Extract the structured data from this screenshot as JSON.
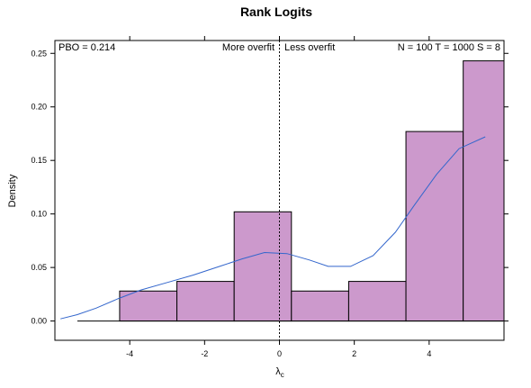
{
  "chart_data": {
    "type": "bar",
    "title": "Rank Logits",
    "xlabel": "λc",
    "ylabel": "Density",
    "xlim": [
      -6,
      6
    ],
    "ylim": [
      -0.018,
      0.262
    ],
    "x_ticks": [
      -4,
      -2,
      0,
      2,
      4
    ],
    "y_ticks": [
      0.0,
      0.05,
      0.1,
      0.15,
      0.2,
      0.25
    ],
    "y_tick_labels": [
      "0.00",
      "0.05",
      "0.10",
      "0.15",
      "0.20",
      "0.25"
    ],
    "bins": [
      {
        "x0": -4.27,
        "x1": -2.74,
        "density": 0.028
      },
      {
        "x0": -2.74,
        "x1": -1.21,
        "density": 0.037
      },
      {
        "x0": -1.21,
        "x1": 0.32,
        "density": 0.102
      },
      {
        "x0": 0.32,
        "x1": 1.85,
        "density": 0.028
      },
      {
        "x0": 1.85,
        "x1": 3.38,
        "density": 0.037
      },
      {
        "x0": 3.38,
        "x1": 4.91,
        "density": 0.177
      },
      {
        "x0": 4.91,
        "x1": 6.0,
        "density": 0.243
      }
    ],
    "density_curve": {
      "x": [
        -5.85,
        -5.4,
        -4.9,
        -4.3,
        -3.7,
        -3.0,
        -2.3,
        -1.6,
        -1.0,
        -0.4,
        0.2,
        0.8,
        1.3,
        1.9,
        2.5,
        3.1,
        3.6,
        4.2,
        4.8,
        5.5
      ],
      "y": [
        0.002,
        0.006,
        0.012,
        0.021,
        0.029,
        0.036,
        0.043,
        0.051,
        0.058,
        0.064,
        0.063,
        0.057,
        0.051,
        0.051,
        0.061,
        0.083,
        0.108,
        0.137,
        0.161,
        0.172
      ]
    },
    "rug_start_x": -5.4,
    "divider_x": 0,
    "annotations": {
      "pbo": "PBO = 0.214",
      "more_overfit": "More overfit",
      "less_overfit": "Less overfit",
      "params": "N = 100  T = 1000  S = 8"
    },
    "colors": {
      "bar_fill": "#cc99cc",
      "bar_stroke": "#000000",
      "curve": "#3366cc"
    }
  }
}
